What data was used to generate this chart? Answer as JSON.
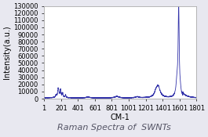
{
  "title": "Raman Spectra of  SWNTs",
  "xlabel": "CM-1",
  "ylabel": "Intensity(a.u.)",
  "xlim": [
    1,
    1801
  ],
  "ylim": [
    0,
    130000
  ],
  "xticks": [
    1,
    201,
    401,
    601,
    801,
    1001,
    1201,
    1401,
    1601,
    1801
  ],
  "yticks": [
    0,
    10000,
    20000,
    30000,
    40000,
    50000,
    60000,
    70000,
    80000,
    90000,
    100000,
    110000,
    120000,
    130000
  ],
  "ytick_labels": [
    "0",
    "10000",
    "20000",
    "30000",
    "40000",
    "50000",
    "60000",
    "70000",
    "80000",
    "90000",
    "100000",
    "110000",
    "120000",
    "130000"
  ],
  "line_color": "#3333aa",
  "background_color": "#e8e8f0",
  "plot_bg_color": "#ffffff",
  "title_fontsize": 8,
  "axis_label_fontsize": 7,
  "tick_fontsize": 6
}
